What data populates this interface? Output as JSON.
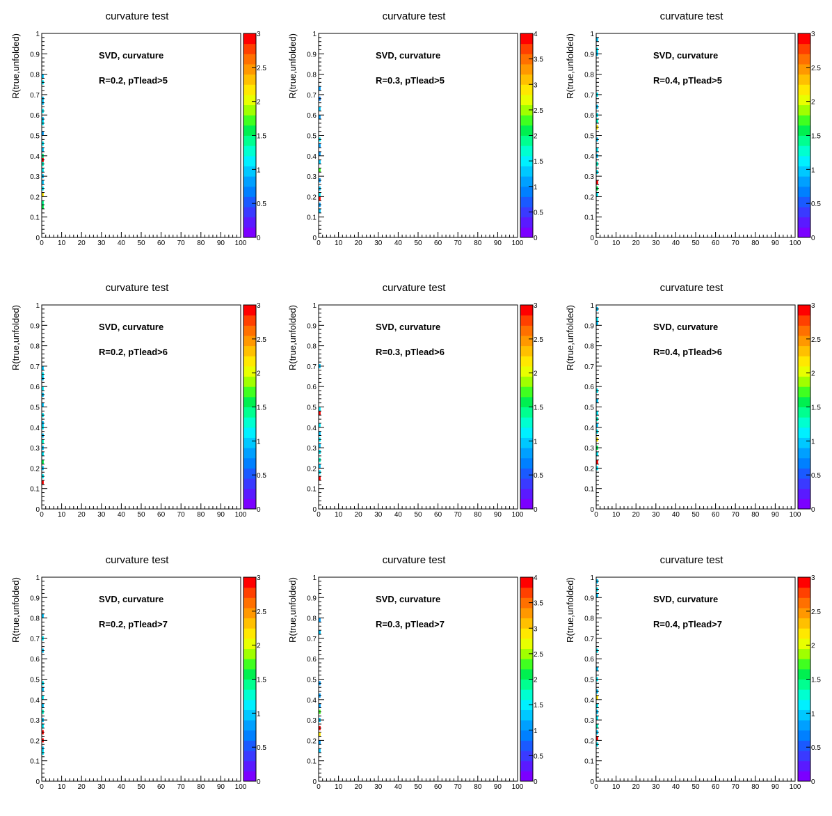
{
  "palette": [
    "#7b00ff",
    "#5a1aff",
    "#3a3aff",
    "#1a5aff",
    "#0080ff",
    "#00a0ff",
    "#00c8ff",
    "#00f0ff",
    "#00ffd0",
    "#00ff90",
    "#00f050",
    "#40ff20",
    "#a0ff00",
    "#e8ff00",
    "#ffe800",
    "#ffc000",
    "#ff9800",
    "#ff7000",
    "#ff4000",
    "#ff0000"
  ],
  "chart_data": [
    {
      "type": "heatmap",
      "title": "curvature test",
      "ylabel": "R(true,unfolded)",
      "annotation_1": "SVD, curvature",
      "annotation_2": "R=0.2, pTlead>5",
      "xlim": [
        0,
        100
      ],
      "ylim": [
        0,
        1
      ],
      "zlim": [
        0,
        3
      ],
      "x_ticks": [
        "0",
        "10",
        "20",
        "30",
        "40",
        "50",
        "60",
        "70",
        "80",
        "90",
        "100"
      ],
      "y_ticks": [
        "0",
        "0.1",
        "0.2",
        "0.3",
        "0.4",
        "0.5",
        "0.6",
        "0.7",
        "0.8",
        "0.9",
        "1"
      ],
      "z_ticks": [
        "0",
        "0.5",
        "1",
        "1.5",
        "2",
        "2.5",
        "3"
      ],
      "z_tick_values": [
        0,
        0.5,
        1,
        1.5,
        2,
        2.5,
        3
      ],
      "cells": [
        [
          0,
          0.14,
          1.6
        ],
        [
          0,
          0.16,
          1.4
        ],
        [
          0,
          0.2,
          2.2
        ],
        [
          0,
          0.23,
          1.2
        ],
        [
          0,
          0.26,
          1.0
        ],
        [
          0,
          0.29,
          0.9
        ],
        [
          0,
          0.32,
          1.1
        ],
        [
          0,
          0.35,
          1.3
        ],
        [
          0,
          0.37,
          2.9
        ],
        [
          0,
          0.39,
          1.4
        ],
        [
          0,
          0.42,
          1.0
        ],
        [
          0,
          0.45,
          1.2
        ],
        [
          0,
          0.5,
          0.8
        ],
        [
          0,
          0.55,
          1.1
        ],
        [
          0,
          0.57,
          1.0
        ],
        [
          0,
          0.61,
          1.2
        ],
        [
          0,
          0.65,
          0.9
        ],
        [
          0,
          0.67,
          1.0
        ],
        [
          0,
          0.75,
          1.2
        ],
        [
          0,
          0.78,
          1.0
        ]
      ]
    },
    {
      "type": "heatmap",
      "title": "curvature test",
      "ylabel": "R(true,unfolded)",
      "annotation_1": "SVD, curvature",
      "annotation_2": "R=0.3, pTlead>5",
      "xlim": [
        0,
        100
      ],
      "ylim": [
        0,
        1
      ],
      "zlim": [
        0,
        4
      ],
      "x_ticks": [
        "0",
        "10",
        "20",
        "30",
        "40",
        "50",
        "60",
        "70",
        "80",
        "90",
        "100"
      ],
      "y_ticks": [
        "0",
        "0.1",
        "0.2",
        "0.3",
        "0.4",
        "0.5",
        "0.6",
        "0.7",
        "0.8",
        "0.9",
        "1"
      ],
      "z_ticks": [
        "0",
        "0.5",
        "1",
        "1.5",
        "2",
        "2.5",
        "3",
        "3.5",
        "4"
      ],
      "z_tick_values": [
        0,
        0.5,
        1,
        1.5,
        2,
        2.5,
        3,
        3.5,
        4
      ],
      "cells": [
        [
          0,
          0.12,
          1.3
        ],
        [
          0,
          0.15,
          1.1
        ],
        [
          0,
          0.18,
          3.8
        ],
        [
          0,
          0.2,
          1.5
        ],
        [
          0,
          0.23,
          1.2
        ],
        [
          0,
          0.27,
          1.0
        ],
        [
          0,
          0.32,
          2.2
        ],
        [
          0,
          0.36,
          1.3
        ],
        [
          0,
          0.4,
          1.1
        ],
        [
          0,
          0.44,
          1.0
        ],
        [
          0,
          0.47,
          1.4
        ],
        [
          0,
          0.58,
          1.0
        ],
        [
          0,
          0.62,
          1.2
        ],
        [
          0,
          0.67,
          0.9
        ],
        [
          0,
          0.72,
          1.1
        ]
      ]
    },
    {
      "type": "heatmap",
      "title": "curvature test",
      "ylabel": "R(true,unfolded)",
      "annotation_1": "SVD, curvature",
      "annotation_2": "R=0.4, pTlead>5",
      "xlim": [
        0,
        100
      ],
      "ylim": [
        0,
        1
      ],
      "zlim": [
        0,
        3
      ],
      "x_ticks": [
        "0",
        "10",
        "20",
        "30",
        "40",
        "50",
        "60",
        "70",
        "80",
        "90",
        "100"
      ],
      "y_ticks": [
        "0",
        "0.1",
        "0.2",
        "0.3",
        "0.4",
        "0.5",
        "0.6",
        "0.7",
        "0.8",
        "0.9",
        "1"
      ],
      "z_ticks": [
        "0",
        "0.5",
        "1",
        "1.5",
        "2",
        "2.5",
        "3"
      ],
      "z_tick_values": [
        0,
        0.5,
        1,
        1.5,
        2,
        2.5,
        3
      ],
      "cells": [
        [
          0,
          0.2,
          1.2
        ],
        [
          0,
          0.23,
          1.5
        ],
        [
          0,
          0.26,
          2.9
        ],
        [
          0,
          0.31,
          1.1
        ],
        [
          0,
          0.35,
          1.3
        ],
        [
          0,
          0.39,
          1.0
        ],
        [
          0,
          0.42,
          1.2
        ],
        [
          0,
          0.47,
          1.0
        ],
        [
          0,
          0.53,
          2.1
        ],
        [
          0,
          0.56,
          1.3
        ],
        [
          0,
          0.59,
          1.1
        ],
        [
          0,
          0.63,
          1.0
        ],
        [
          0,
          0.69,
          1.2
        ],
        [
          0,
          0.89,
          1.0
        ],
        [
          0,
          0.91,
          1.1
        ],
        [
          0,
          0.96,
          1.0
        ]
      ]
    },
    {
      "type": "heatmap",
      "title": "curvature test",
      "ylabel": "R(true,unfolded)",
      "annotation_1": "SVD, curvature",
      "annotation_2": "R=0.2, pTlead>6",
      "xlim": [
        0,
        100
      ],
      "ylim": [
        0,
        1
      ],
      "zlim": [
        0,
        3
      ],
      "x_ticks": [
        "0",
        "10",
        "20",
        "30",
        "40",
        "50",
        "60",
        "70",
        "80",
        "90",
        "100"
      ],
      "y_ticks": [
        "0",
        "0.1",
        "0.2",
        "0.3",
        "0.4",
        "0.5",
        "0.6",
        "0.7",
        "0.8",
        "0.9",
        "1"
      ],
      "z_ticks": [
        "0",
        "0.5",
        "1",
        "1.5",
        "2",
        "2.5",
        "3"
      ],
      "z_tick_values": [
        0,
        0.5,
        1,
        1.5,
        2,
        2.5,
        3
      ],
      "cells": [
        [
          0,
          0.12,
          2.9
        ],
        [
          0,
          0.15,
          1.2
        ],
        [
          0,
          0.19,
          1.0
        ],
        [
          0,
          0.22,
          1.5
        ],
        [
          0,
          0.26,
          1.1
        ],
        [
          0,
          0.29,
          1.0
        ],
        [
          0,
          0.32,
          1.3
        ],
        [
          0,
          0.35,
          1.0
        ],
        [
          0,
          0.39,
          1.2
        ],
        [
          0,
          0.41,
          1.0
        ],
        [
          0,
          0.45,
          1.1
        ],
        [
          0,
          0.5,
          0.9
        ],
        [
          0,
          0.55,
          1.0
        ],
        [
          0,
          0.58,
          1.2
        ],
        [
          0,
          0.63,
          1.0
        ],
        [
          0,
          0.65,
          1.1
        ],
        [
          0,
          0.68,
          1.0
        ]
      ]
    },
    {
      "type": "heatmap",
      "title": "curvature test",
      "ylabel": "R(true,unfolded)",
      "annotation_1": "SVD, curvature",
      "annotation_2": "R=0.3, pTlead>6",
      "xlim": [
        0,
        100
      ],
      "ylim": [
        0,
        1
      ],
      "zlim": [
        0,
        3
      ],
      "x_ticks": [
        "0",
        "10",
        "20",
        "30",
        "40",
        "50",
        "60",
        "70",
        "80",
        "90",
        "100"
      ],
      "y_ticks": [
        "0",
        "0.1",
        "0.2",
        "0.3",
        "0.4",
        "0.5",
        "0.6",
        "0.7",
        "0.8",
        "0.9",
        "1"
      ],
      "z_ticks": [
        "0",
        "0.5",
        "1",
        "1.5",
        "2",
        "2.5",
        "3"
      ],
      "z_tick_values": [
        0,
        0.5,
        1,
        1.5,
        2,
        2.5,
        3
      ],
      "cells": [
        [
          0,
          0.14,
          2.9
        ],
        [
          0,
          0.17,
          1.2
        ],
        [
          0,
          0.2,
          1.0
        ],
        [
          0,
          0.23,
          1.3
        ],
        [
          0,
          0.27,
          1.1
        ],
        [
          0,
          0.3,
          1.0
        ],
        [
          0,
          0.33,
          1.2
        ],
        [
          0,
          0.36,
          1.0
        ],
        [
          0,
          0.4,
          1.1
        ],
        [
          0,
          0.46,
          2.9
        ],
        [
          0,
          0.48,
          1.2
        ],
        [
          0,
          0.69,
          1.0
        ]
      ]
    },
    {
      "type": "heatmap",
      "title": "curvature test",
      "ylabel": "R(true,unfolded)",
      "annotation_1": "SVD, curvature",
      "annotation_2": "R=0.4, pTlead>6",
      "xlim": [
        0,
        100
      ],
      "ylim": [
        0,
        1
      ],
      "zlim": [
        0,
        3
      ],
      "x_ticks": [
        "0",
        "10",
        "20",
        "30",
        "40",
        "50",
        "60",
        "70",
        "80",
        "90",
        "100"
      ],
      "y_ticks": [
        "0",
        "0.1",
        "0.2",
        "0.3",
        "0.4",
        "0.5",
        "0.6",
        "0.7",
        "0.8",
        "0.9",
        "1"
      ],
      "z_ticks": [
        "0",
        "0.5",
        "1",
        "1.5",
        "2",
        "2.5",
        "3"
      ],
      "z_tick_values": [
        0,
        0.5,
        1,
        1.5,
        2,
        2.5,
        3
      ],
      "cells": [
        [
          0,
          0.19,
          1.2
        ],
        [
          0,
          0.22,
          2.9
        ],
        [
          0,
          0.26,
          1.1
        ],
        [
          0,
          0.29,
          1.5
        ],
        [
          0,
          0.33,
          2.2
        ],
        [
          0,
          0.37,
          1.1
        ],
        [
          0,
          0.4,
          1.0
        ],
        [
          0,
          0.43,
          1.3
        ],
        [
          0,
          0.46,
          1.1
        ],
        [
          0,
          0.52,
          1.0
        ],
        [
          0,
          0.57,
          1.2
        ],
        [
          0,
          0.9,
          1.0
        ],
        [
          0,
          0.92,
          1.1
        ],
        [
          0,
          0.97,
          1.0
        ]
      ]
    },
    {
      "type": "heatmap",
      "title": "curvature test",
      "ylabel": "R(true,unfolded)",
      "annotation_1": "SVD, curvature",
      "annotation_2": "R=0.2, pTlead>7",
      "xlim": [
        0,
        100
      ],
      "ylim": [
        0,
        1
      ],
      "zlim": [
        0,
        3
      ],
      "x_ticks": [
        "0",
        "10",
        "20",
        "30",
        "40",
        "50",
        "60",
        "70",
        "80",
        "90",
        "100"
      ],
      "y_ticks": [
        "0",
        "0.1",
        "0.2",
        "0.3",
        "0.4",
        "0.5",
        "0.6",
        "0.7",
        "0.8",
        "0.9",
        "1"
      ],
      "z_ticks": [
        "0",
        "0.5",
        "1",
        "1.5",
        "2",
        "2.5",
        "3"
      ],
      "z_tick_values": [
        0,
        0.5,
        1,
        1.5,
        2,
        2.5,
        3
      ],
      "cells": [
        [
          0,
          0.13,
          1.2
        ],
        [
          0,
          0.15,
          1.0
        ],
        [
          0,
          0.19,
          2.9
        ],
        [
          0,
          0.23,
          2.9
        ],
        [
          0,
          0.26,
          1.1
        ],
        [
          0,
          0.29,
          1.0
        ],
        [
          0,
          0.33,
          1.3
        ],
        [
          0,
          0.36,
          1.0
        ],
        [
          0,
          0.4,
          1.1
        ],
        [
          0,
          0.44,
          1.0
        ],
        [
          0,
          0.47,
          1.2
        ],
        [
          0,
          0.63,
          1.0
        ],
        [
          0,
          0.69,
          1.1
        ],
        [
          0,
          0.8,
          1.0
        ]
      ]
    },
    {
      "type": "heatmap",
      "title": "curvature test",
      "ylabel": "R(true,unfolded)",
      "annotation_1": "SVD, curvature",
      "annotation_2": "R=0.3, pTlead>7",
      "xlim": [
        0,
        100
      ],
      "ylim": [
        0,
        1
      ],
      "zlim": [
        0,
        4
      ],
      "x_ticks": [
        "0",
        "10",
        "20",
        "30",
        "40",
        "50",
        "60",
        "70",
        "80",
        "90",
        "100"
      ],
      "y_ticks": [
        "0",
        "0.1",
        "0.2",
        "0.3",
        "0.4",
        "0.5",
        "0.6",
        "0.7",
        "0.8",
        "0.9",
        "1"
      ],
      "z_ticks": [
        "0",
        "0.5",
        "1",
        "1.5",
        "2",
        "2.5",
        "3",
        "3.5",
        "4"
      ],
      "z_tick_values": [
        0,
        0.5,
        1,
        1.5,
        2,
        2.5,
        3,
        3.5,
        4
      ],
      "cells": [
        [
          0,
          0.14,
          1.2
        ],
        [
          0,
          0.18,
          1.0
        ],
        [
          0,
          0.22,
          2.8
        ],
        [
          0,
          0.25,
          3.8
        ],
        [
          0,
          0.29,
          1.3
        ],
        [
          0,
          0.33,
          2.2
        ],
        [
          0,
          0.36,
          1.0
        ],
        [
          0,
          0.41,
          1.1
        ],
        [
          0,
          0.47,
          1.0
        ],
        [
          0,
          0.72,
          1.2
        ],
        [
          0,
          0.78,
          1.0
        ]
      ]
    },
    {
      "type": "heatmap",
      "title": "curvature test",
      "ylabel": "R(true,unfolded)",
      "annotation_1": "SVD, curvature",
      "annotation_2": "R=0.4, pTlead>7",
      "xlim": [
        0,
        100
      ],
      "ylim": [
        0,
        1
      ],
      "zlim": [
        0,
        3
      ],
      "x_ticks": [
        "0",
        "10",
        "20",
        "30",
        "40",
        "50",
        "60",
        "70",
        "80",
        "90",
        "100"
      ],
      "y_ticks": [
        "0",
        "0.1",
        "0.2",
        "0.3",
        "0.4",
        "0.5",
        "0.6",
        "0.7",
        "0.8",
        "0.9",
        "1"
      ],
      "z_ticks": [
        "0",
        "0.5",
        "1",
        "1.5",
        "2",
        "2.5",
        "3"
      ],
      "z_tick_values": [
        0,
        0.5,
        1,
        1.5,
        2,
        2.5,
        3
      ],
      "cells": [
        [
          0,
          0.17,
          1.2
        ],
        [
          0,
          0.2,
          2.9
        ],
        [
          0,
          0.23,
          1.0
        ],
        [
          0,
          0.26,
          1.3
        ],
        [
          0,
          0.3,
          1.1
        ],
        [
          0,
          0.33,
          1.0
        ],
        [
          0,
          0.36,
          1.2
        ],
        [
          0,
          0.4,
          2.1
        ],
        [
          0,
          0.43,
          1.0
        ],
        [
          0,
          0.49,
          1.1
        ],
        [
          0,
          0.54,
          1.0
        ],
        [
          0,
          0.63,
          1.2
        ],
        [
          0,
          0.9,
          1.0
        ],
        [
          0,
          0.93,
          1.1
        ],
        [
          0,
          0.97,
          1.0
        ]
      ]
    }
  ]
}
